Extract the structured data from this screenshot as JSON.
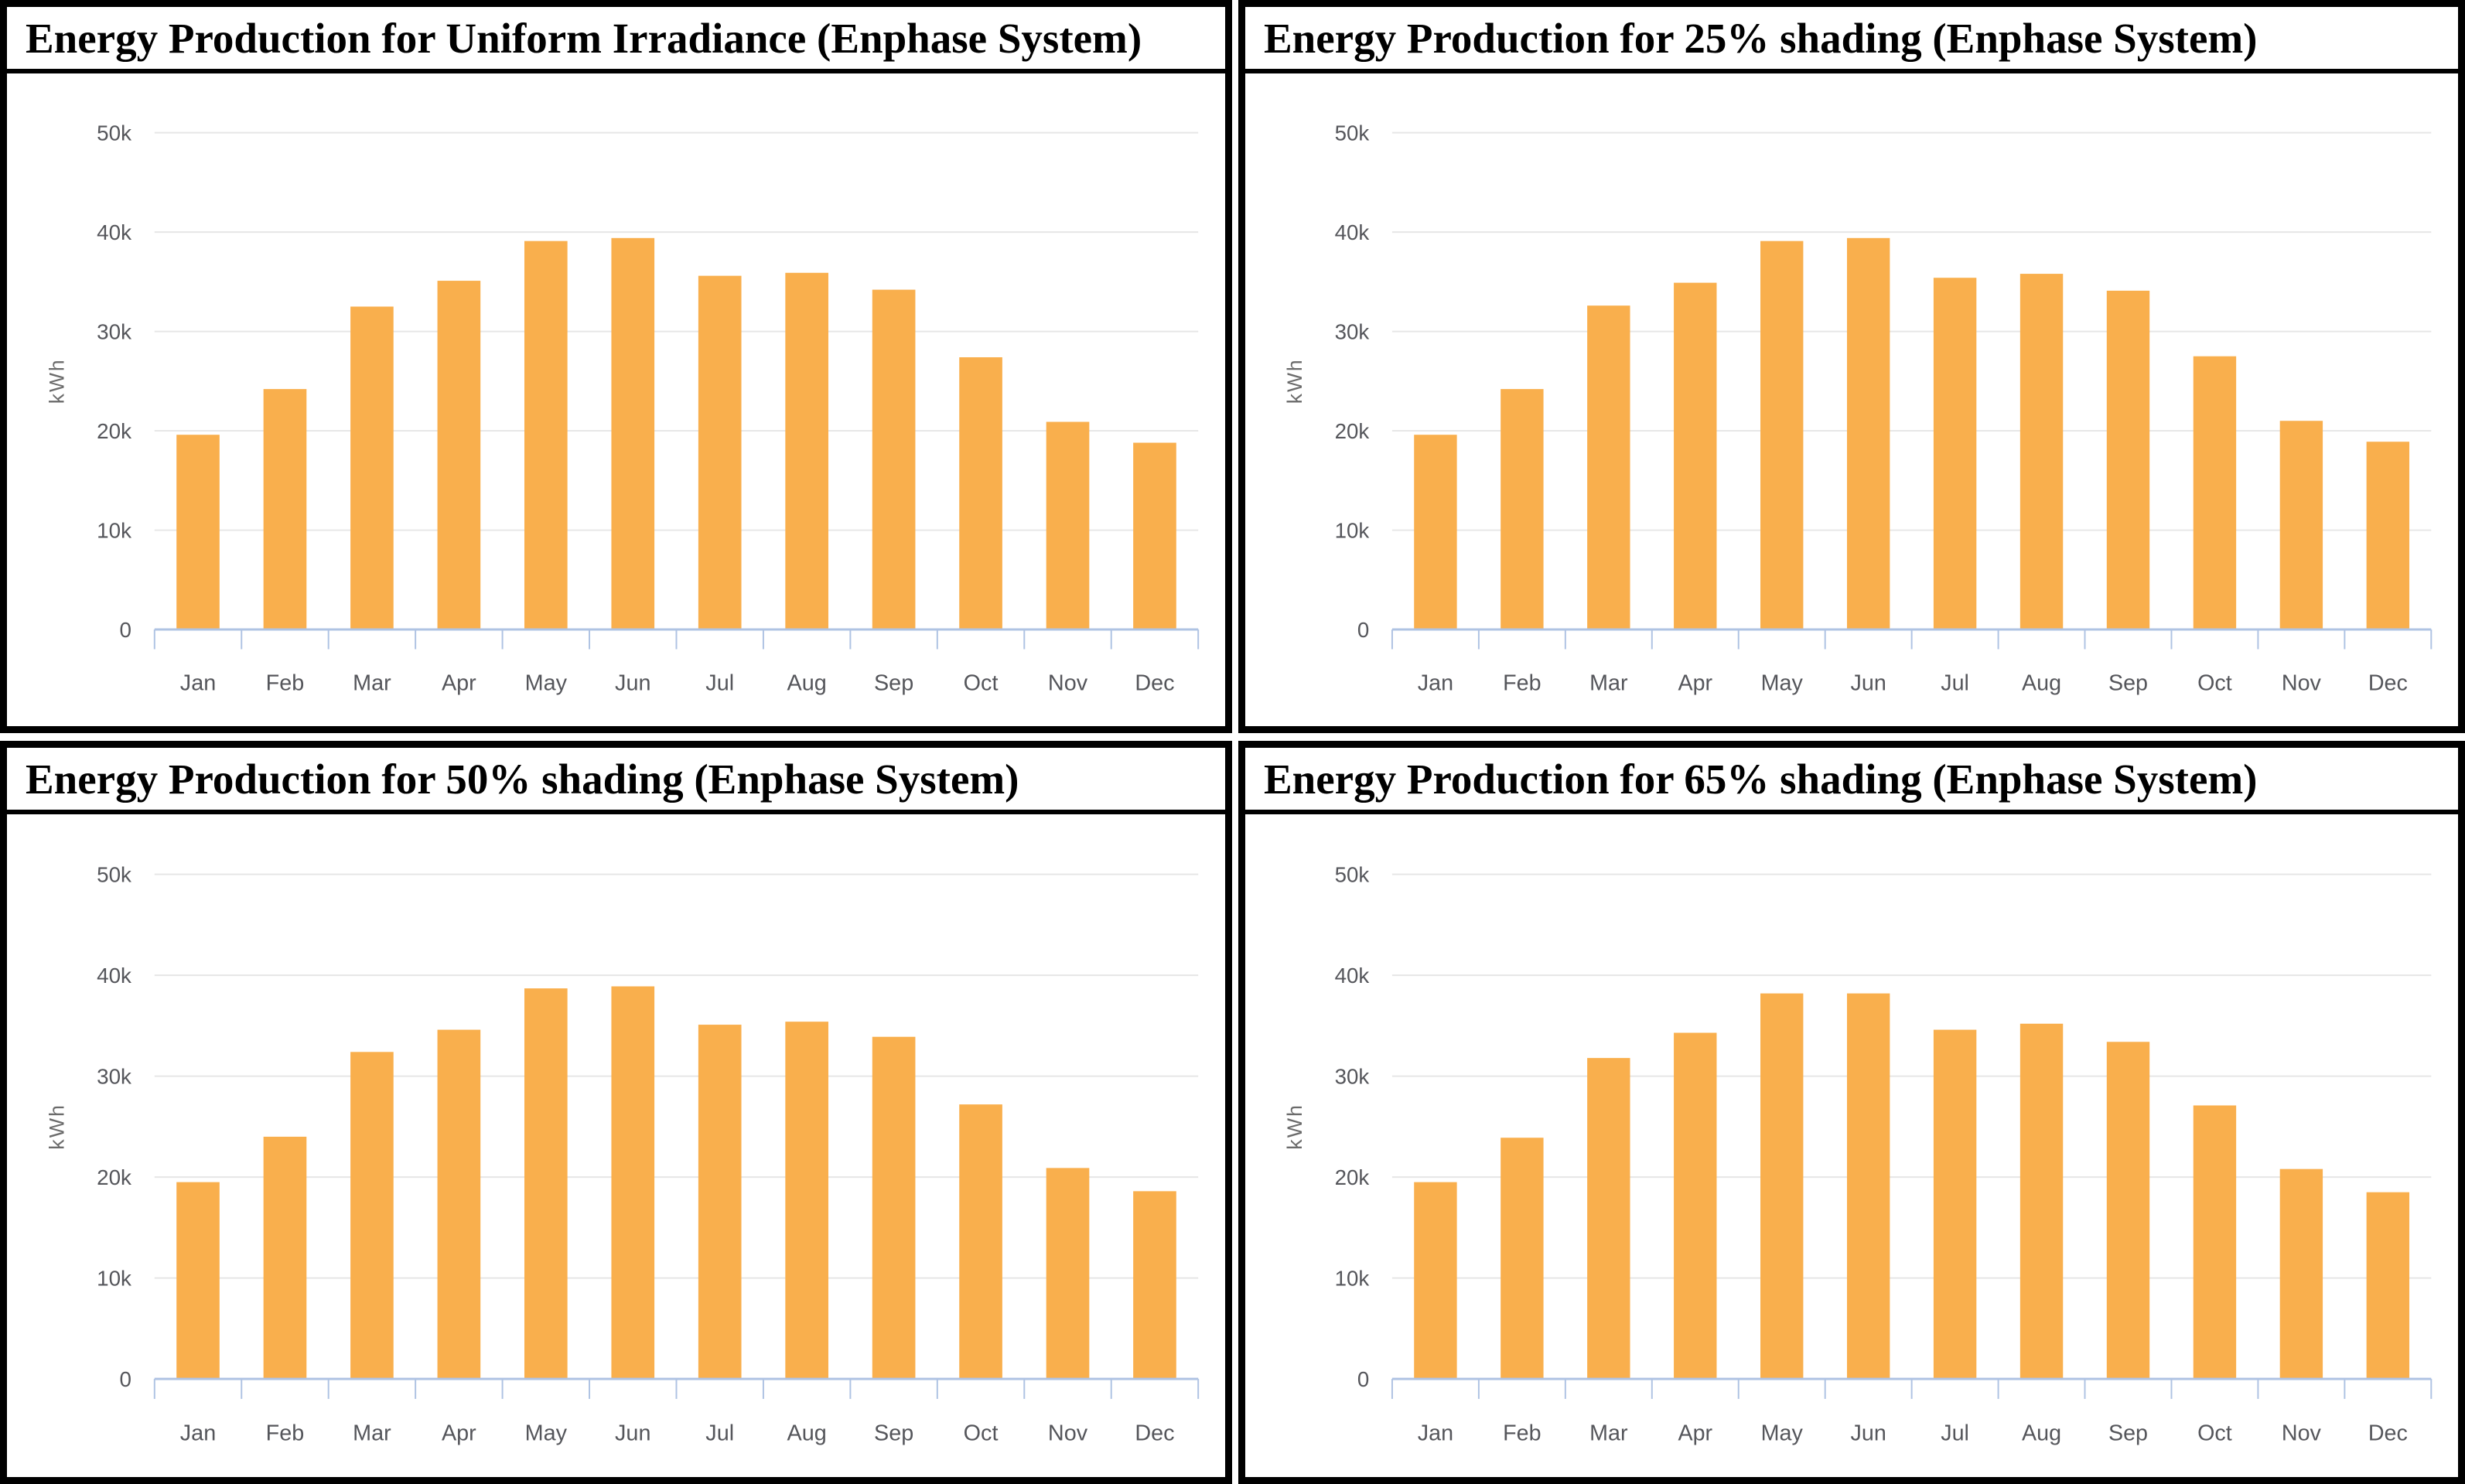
{
  "colors": {
    "bar": "#F9AF4D",
    "grid_line": "#E6E6E6",
    "axis_line": "#AFC3E3",
    "tick_label": "#55565B",
    "axis_title": "#6B6B6B",
    "panel_border": "#000000",
    "title_text": "#000000"
  },
  "chart_data": [
    {
      "type": "bar",
      "title": "Energy Production for Uniform Irradiance (Enphase System)",
      "xlabel": "",
      "ylabel": "kWh",
      "ylim": [
        0,
        50000
      ],
      "ytick_values": [
        0,
        10000,
        20000,
        30000,
        40000,
        50000
      ],
      "ytick_labels": [
        "0",
        "10k",
        "20k",
        "30k",
        "40k",
        "50k"
      ],
      "grid": true,
      "legend": "none",
      "categories": [
        "Jan",
        "Feb",
        "Mar",
        "Apr",
        "May",
        "Jun",
        "Jul",
        "Aug",
        "Sep",
        "Oct",
        "Nov",
        "Dec"
      ],
      "values": [
        19600,
        24200,
        32500,
        35100,
        39100,
        39400,
        35600,
        35900,
        34200,
        27400,
        20900,
        18800
      ]
    },
    {
      "type": "bar",
      "title": "Energy Production for 25% shading (Enphase System)",
      "xlabel": "",
      "ylabel": "kWh",
      "ylim": [
        0,
        50000
      ],
      "ytick_values": [
        0,
        10000,
        20000,
        30000,
        40000,
        50000
      ],
      "ytick_labels": [
        "0",
        "10k",
        "20k",
        "30k",
        "40k",
        "50k"
      ],
      "grid": true,
      "legend": "none",
      "categories": [
        "Jan",
        "Feb",
        "Mar",
        "Apr",
        "May",
        "Jun",
        "Jul",
        "Aug",
        "Sep",
        "Oct",
        "Nov",
        "Dec"
      ],
      "values": [
        19600,
        24200,
        32600,
        34900,
        39100,
        39400,
        35400,
        35800,
        34100,
        27500,
        21000,
        18900
      ]
    },
    {
      "type": "bar",
      "title": "Energy Production for 50% shading (Enphase System)",
      "xlabel": "",
      "ylabel": "kWh",
      "ylim": [
        0,
        50000
      ],
      "ytick_values": [
        0,
        10000,
        20000,
        30000,
        40000,
        50000
      ],
      "ytick_labels": [
        "0",
        "10k",
        "20k",
        "30k",
        "40k",
        "50k"
      ],
      "grid": true,
      "legend": "none",
      "categories": [
        "Jan",
        "Feb",
        "Mar",
        "Apr",
        "May",
        "Jun",
        "Jul",
        "Aug",
        "Sep",
        "Oct",
        "Nov",
        "Dec"
      ],
      "values": [
        19500,
        24000,
        32400,
        34600,
        38700,
        38900,
        35100,
        35400,
        33900,
        27200,
        20900,
        18600
      ]
    },
    {
      "type": "bar",
      "title": "Energy Production for 65% shading (Enphase System)",
      "xlabel": "",
      "ylabel": "kWh",
      "ylim": [
        0,
        50000
      ],
      "ytick_values": [
        0,
        10000,
        20000,
        30000,
        40000,
        50000
      ],
      "ytick_labels": [
        "0",
        "10k",
        "20k",
        "30k",
        "40k",
        "50k"
      ],
      "grid": true,
      "legend": "none",
      "categories": [
        "Jan",
        "Feb",
        "Mar",
        "Apr",
        "May",
        "Jun",
        "Jul",
        "Aug",
        "Sep",
        "Oct",
        "Nov",
        "Dec"
      ],
      "values": [
        19500,
        23900,
        31800,
        34300,
        38200,
        38200,
        34600,
        35200,
        33400,
        27100,
        20800,
        18500
      ]
    }
  ]
}
